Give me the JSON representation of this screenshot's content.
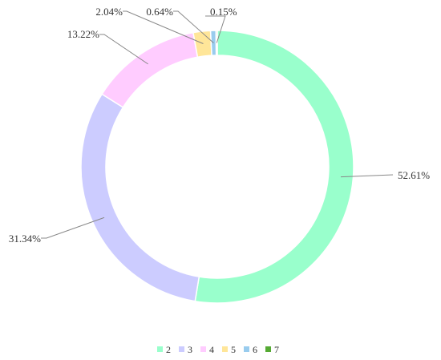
{
  "chart_data": {
    "type": "pie",
    "variant": "donut",
    "title": "",
    "legend_position": "bottom-center",
    "slices": [
      {
        "name": "2",
        "value": 52.61,
        "label": "52.61%",
        "color": "#99ffcc"
      },
      {
        "name": "3",
        "value": 31.34,
        "label": "31.34%",
        "color": "#ccccff"
      },
      {
        "name": "4",
        "value": 13.22,
        "label": "13.22%",
        "color": "#ffccff"
      },
      {
        "name": "5",
        "value": 2.04,
        "label": "2.04%",
        "color": "#ffe699"
      },
      {
        "name": "6",
        "value": 0.64,
        "label": "0.64%",
        "color": "#99ccee"
      },
      {
        "name": "7",
        "value": 0.15,
        "label": "0.15%",
        "color": "#55aa33"
      }
    ]
  }
}
